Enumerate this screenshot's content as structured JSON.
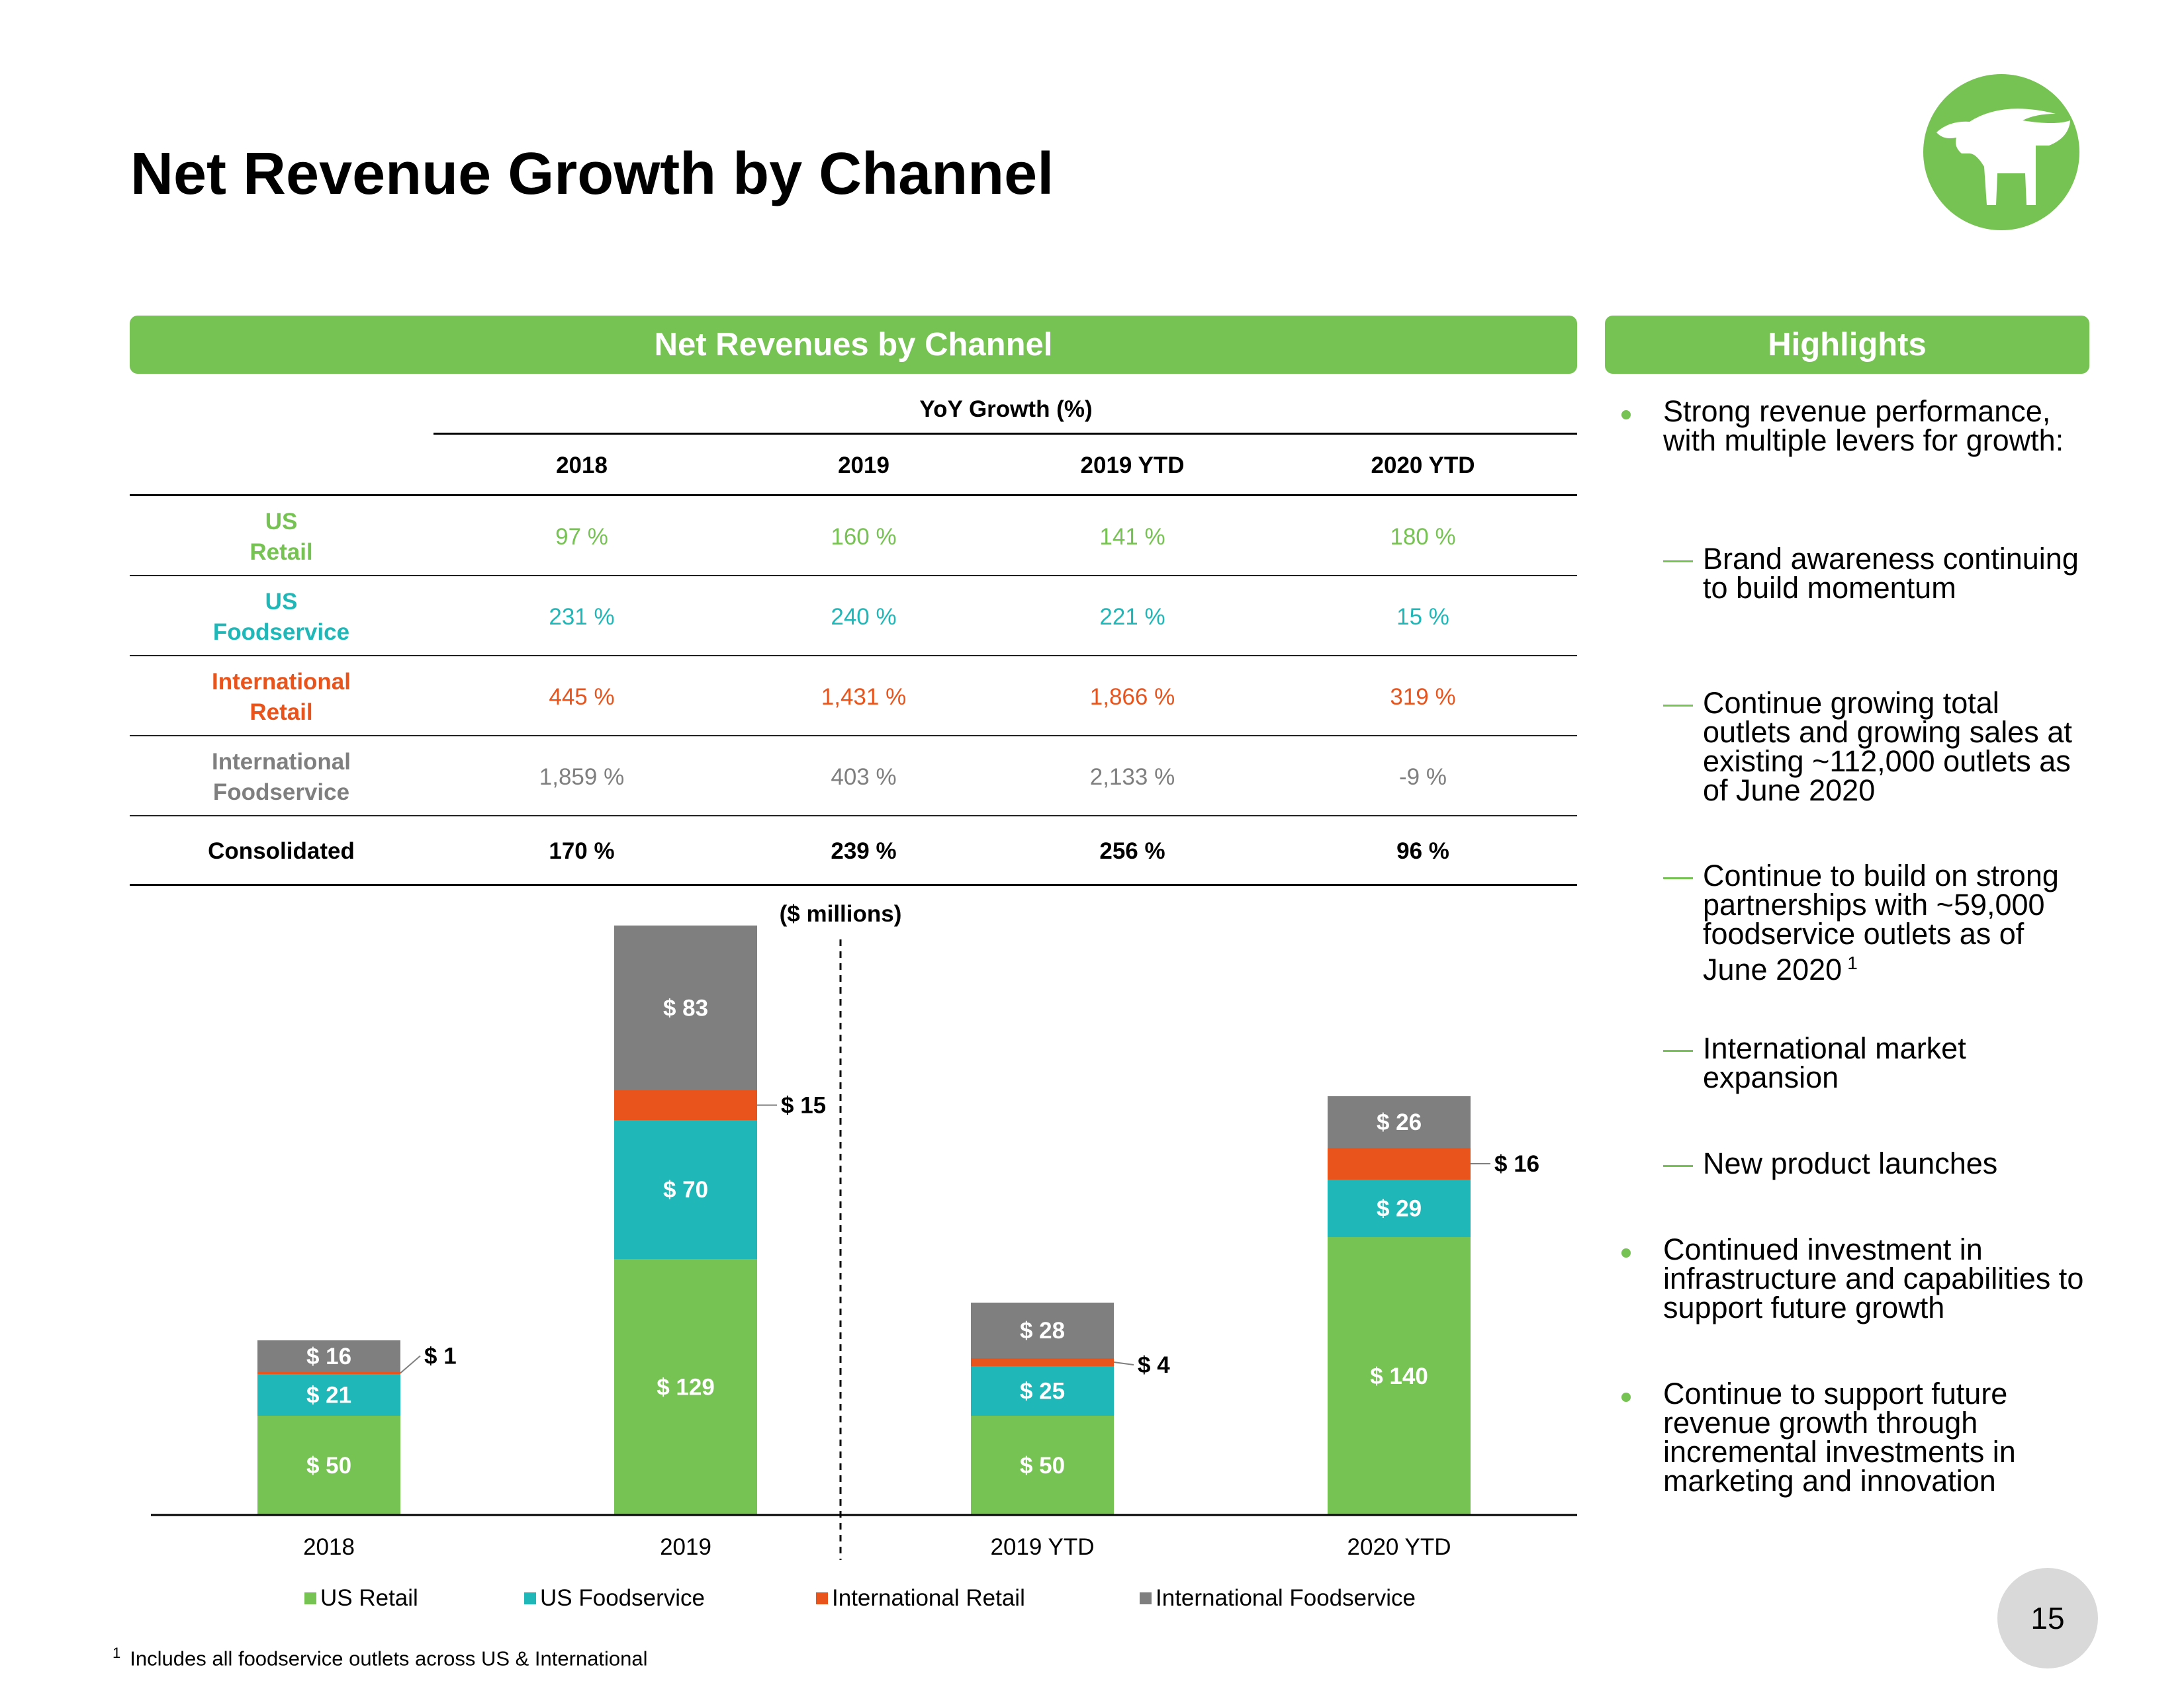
{
  "title": "Net Revenue Growth by Channel",
  "logo": {
    "icon": "steer-logo-icon",
    "color": "#76c252"
  },
  "left_panel_title": "Net Revenues by Channel",
  "right_panel_title": "Highlights",
  "table": {
    "group_header": "YoY Growth (%)",
    "columns": [
      "2018",
      "2019",
      "2019 YTD",
      "2020 YTD"
    ],
    "rows": [
      {
        "label_line1": "US",
        "label_line2": "Retail",
        "color": "#76c252",
        "values": [
          "97 %",
          "160 %",
          "141 %",
          "180 %"
        ]
      },
      {
        "label_line1": "US",
        "label_line2": "Foodservice",
        "color": "#20b7b8",
        "values": [
          "231 %",
          "240 %",
          "221 %",
          "15 %"
        ]
      },
      {
        "label_line1": "International",
        "label_line2": "Retail",
        "color": "#e8541c",
        "values": [
          "445 %",
          "1,431 %",
          "1,866 %",
          "319 %"
        ]
      },
      {
        "label_line1": "International",
        "label_line2": "Foodservice",
        "color": "#7f7f7f",
        "values": [
          "1,859 %",
          "403 %",
          "2,133 %",
          "-9 %"
        ]
      }
    ],
    "total": {
      "label": "Consolidated",
      "values": [
        "170 %",
        "239 %",
        "256 %",
        "96 %"
      ]
    }
  },
  "chart_data": {
    "type": "bar",
    "stacked": true,
    "title": "($ millions)",
    "categories": [
      "2018",
      "2019",
      "2019 YTD",
      "2020 YTD"
    ],
    "series": [
      {
        "name": "US Retail",
        "color": "#76c252",
        "values": [
          50,
          129,
          50,
          140
        ],
        "labels": [
          "$ 50",
          "$ 129",
          "$ 50",
          "$ 140"
        ]
      },
      {
        "name": "US Foodservice",
        "color": "#20b7b8",
        "values": [
          21,
          70,
          25,
          29
        ],
        "labels": [
          "$ 21",
          "$ 70",
          "$ 25",
          "$ 29"
        ]
      },
      {
        "name": "International Retail",
        "color": "#e8541c",
        "values": [
          1,
          15,
          4,
          16
        ],
        "labels": [
          "$ 1",
          "$ 15",
          "$ 4",
          "$ 16"
        ]
      },
      {
        "name": "International Foodservice",
        "color": "#7f7f7f",
        "values": [
          16,
          83,
          28,
          26
        ],
        "labels": [
          "$ 16",
          "$ 83",
          "$ 28",
          "$ 26"
        ]
      }
    ],
    "divider_after": "2019",
    "legend": "bottom",
    "grid": false
  },
  "highlights": [
    {
      "type": "bullet",
      "text": "Strong revenue performance, with multiple levers for growth:"
    },
    {
      "type": "sub",
      "text": "Brand awareness continuing to build momentum"
    },
    {
      "type": "sub",
      "text": "Continue growing total outlets and growing sales at existing ~112,000 outlets as of June 2020"
    },
    {
      "type": "sub",
      "text": "Continue to build on strong partnerships with ~59,000 foodservice outlets as of June 2020",
      "sup": "1"
    },
    {
      "type": "sub",
      "text": "International market expansion"
    },
    {
      "type": "sub",
      "text": "New product launches"
    },
    {
      "type": "bullet",
      "text": "Continued investment in infrastructure and capabilities to support future growth"
    },
    {
      "type": "bullet",
      "text": "Continue to support future revenue growth through incremental investments in marketing and innovation"
    }
  ],
  "footnote": {
    "marker": "1",
    "text": "Includes all foodservice outlets across US & International"
  },
  "page_number": "15"
}
